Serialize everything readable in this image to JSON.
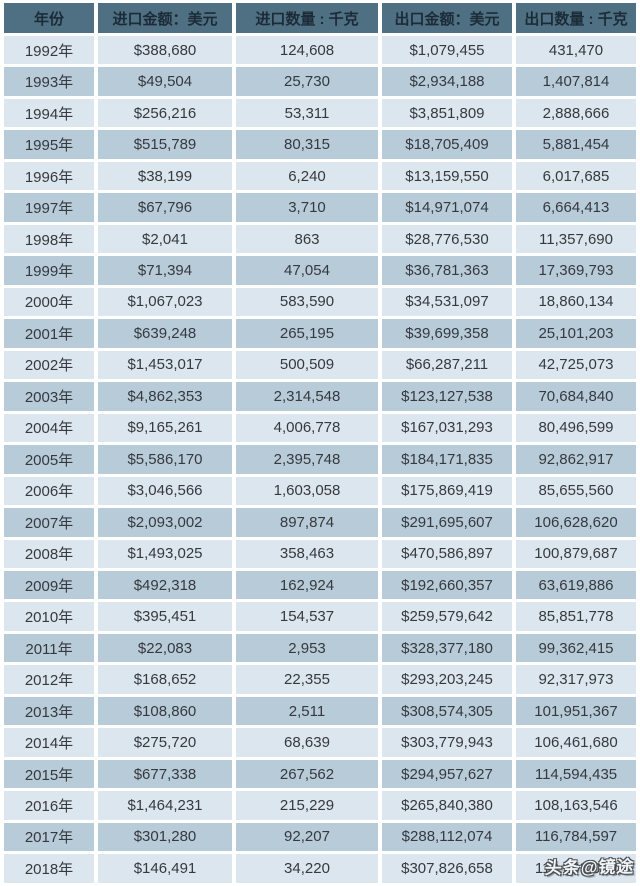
{
  "chart_data": {
    "type": "table",
    "columns": [
      "年份",
      "进口金额：美元",
      "进口数量 : 千克",
      "出口金额：美元",
      "出口数量 : 千克"
    ],
    "rows": [
      [
        "1992年",
        "$388,680",
        "124,608",
        "$1,079,455",
        "431,470"
      ],
      [
        "1993年",
        "$49,504",
        "25,730",
        "$2,934,188",
        "1,407,814"
      ],
      [
        "1994年",
        "$256,216",
        "53,311",
        "$3,851,809",
        "2,888,666"
      ],
      [
        "1995年",
        "$515,789",
        "80,315",
        "$18,705,409",
        "5,881,454"
      ],
      [
        "1996年",
        "$38,199",
        "6,240",
        "$13,159,550",
        "6,017,685"
      ],
      [
        "1997年",
        "$67,796",
        "3,710",
        "$14,971,074",
        "6,664,413"
      ],
      [
        "1998年",
        "$2,041",
        "863",
        "$28,776,530",
        "11,357,690"
      ],
      [
        "1999年",
        "$71,394",
        "47,054",
        "$36,781,363",
        "17,369,793"
      ],
      [
        "2000年",
        "$1,067,023",
        "583,590",
        "$34,531,097",
        "18,860,134"
      ],
      [
        "2001年",
        "$639,248",
        "265,195",
        "$39,699,358",
        "25,101,203"
      ],
      [
        "2002年",
        "$1,453,017",
        "500,509",
        "$66,287,211",
        "42,725,073"
      ],
      [
        "2003年",
        "$4,862,353",
        "2,314,548",
        "$123,127,538",
        "70,684,840"
      ],
      [
        "2004年",
        "$9,165,261",
        "4,006,778",
        "$167,031,293",
        "80,496,599"
      ],
      [
        "2005年",
        "$5,586,170",
        "2,395,748",
        "$184,171,835",
        "92,862,917"
      ],
      [
        "2006年",
        "$3,046,566",
        "1,603,058",
        "$175,869,419",
        "85,655,560"
      ],
      [
        "2007年",
        "$2,093,002",
        "897,874",
        "$291,695,607",
        "106,628,620"
      ],
      [
        "2008年",
        "$1,493,025",
        "358,463",
        "$470,586,897",
        "100,879,687"
      ],
      [
        "2009年",
        "$492,318",
        "162,924",
        "$192,660,357",
        "63,619,886"
      ],
      [
        "2010年",
        "$395,451",
        "154,537",
        "$259,579,642",
        "85,851,778"
      ],
      [
        "2011年",
        "$22,083",
        "2,953",
        "$328,377,180",
        "99,362,415"
      ],
      [
        "2012年",
        "$168,652",
        "22,355",
        "$293,203,245",
        "92,317,973"
      ],
      [
        "2013年",
        "$108,860",
        "2,511",
        "$308,574,305",
        "101,951,367"
      ],
      [
        "2014年",
        "$275,720",
        "68,639",
        "$303,779,943",
        "106,461,680"
      ],
      [
        "2015年",
        "$677,338",
        "267,562",
        "$294,957,627",
        "114,594,435"
      ],
      [
        "2016年",
        "$1,464,231",
        "215,229",
        "$265,840,380",
        "108,163,546"
      ],
      [
        "2017年",
        "$301,280",
        "92,207",
        "$288,112,074",
        "116,784,597"
      ],
      [
        "2018年",
        "$146,491",
        "34,220",
        "$307,826,658",
        "112,703,060"
      ]
    ],
    "obscured_cell": {
      "row": "2018年",
      "column": "出口数量 : 千克",
      "visible_fragment": "112,70…,0…",
      "note": "partially hidden under watermark"
    }
  },
  "watermark": {
    "text": "头条@镜途"
  },
  "colors": {
    "header_bg": "#4e7082",
    "header_text": "#1c2b38",
    "row_light": "#dce6ee",
    "row_dark": "#b7cbd9",
    "body_text": "#36393e",
    "gap": "#ffffff",
    "watermark_fill": "#f2f5f7",
    "watermark_outline": "#4a4f54"
  }
}
